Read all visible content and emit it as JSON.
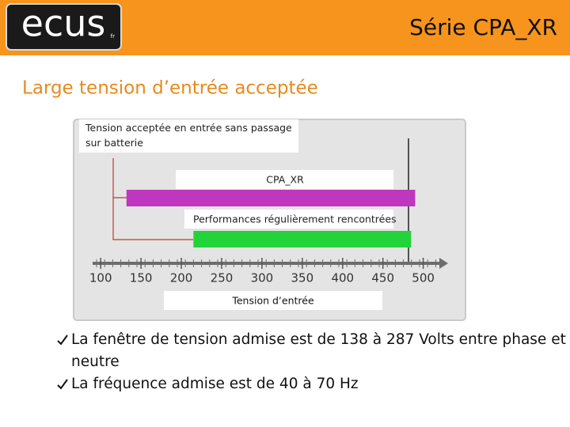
{
  "header": {
    "logo": "ecus",
    "logo_suffix": "fr",
    "title": "Série CPA_XR"
  },
  "heading": "Large tension d’entrée acceptée",
  "chart_data": {
    "type": "range_bar",
    "annotation": "Tension acceptée en entrée sans passage sur batterie",
    "xlabel": "Tension d’entrée",
    "xlim": [
      90,
      520
    ],
    "xticks": [
      100,
      150,
      200,
      250,
      300,
      350,
      400,
      450,
      500
    ],
    "bars": [
      {
        "label": "CPA_XR",
        "color": "#bf36bf",
        "start": 132,
        "end": 490
      },
      {
        "label": "Performances régulièrement rencontrées",
        "color": "#22d43a",
        "start": 215,
        "end": 485
      }
    ]
  },
  "bullets": [
    "La fenêtre de tension admise est de 138 à 287 Volts entre phase et neutre",
    "La fréquence admise est de 40 à 70 Hz"
  ]
}
